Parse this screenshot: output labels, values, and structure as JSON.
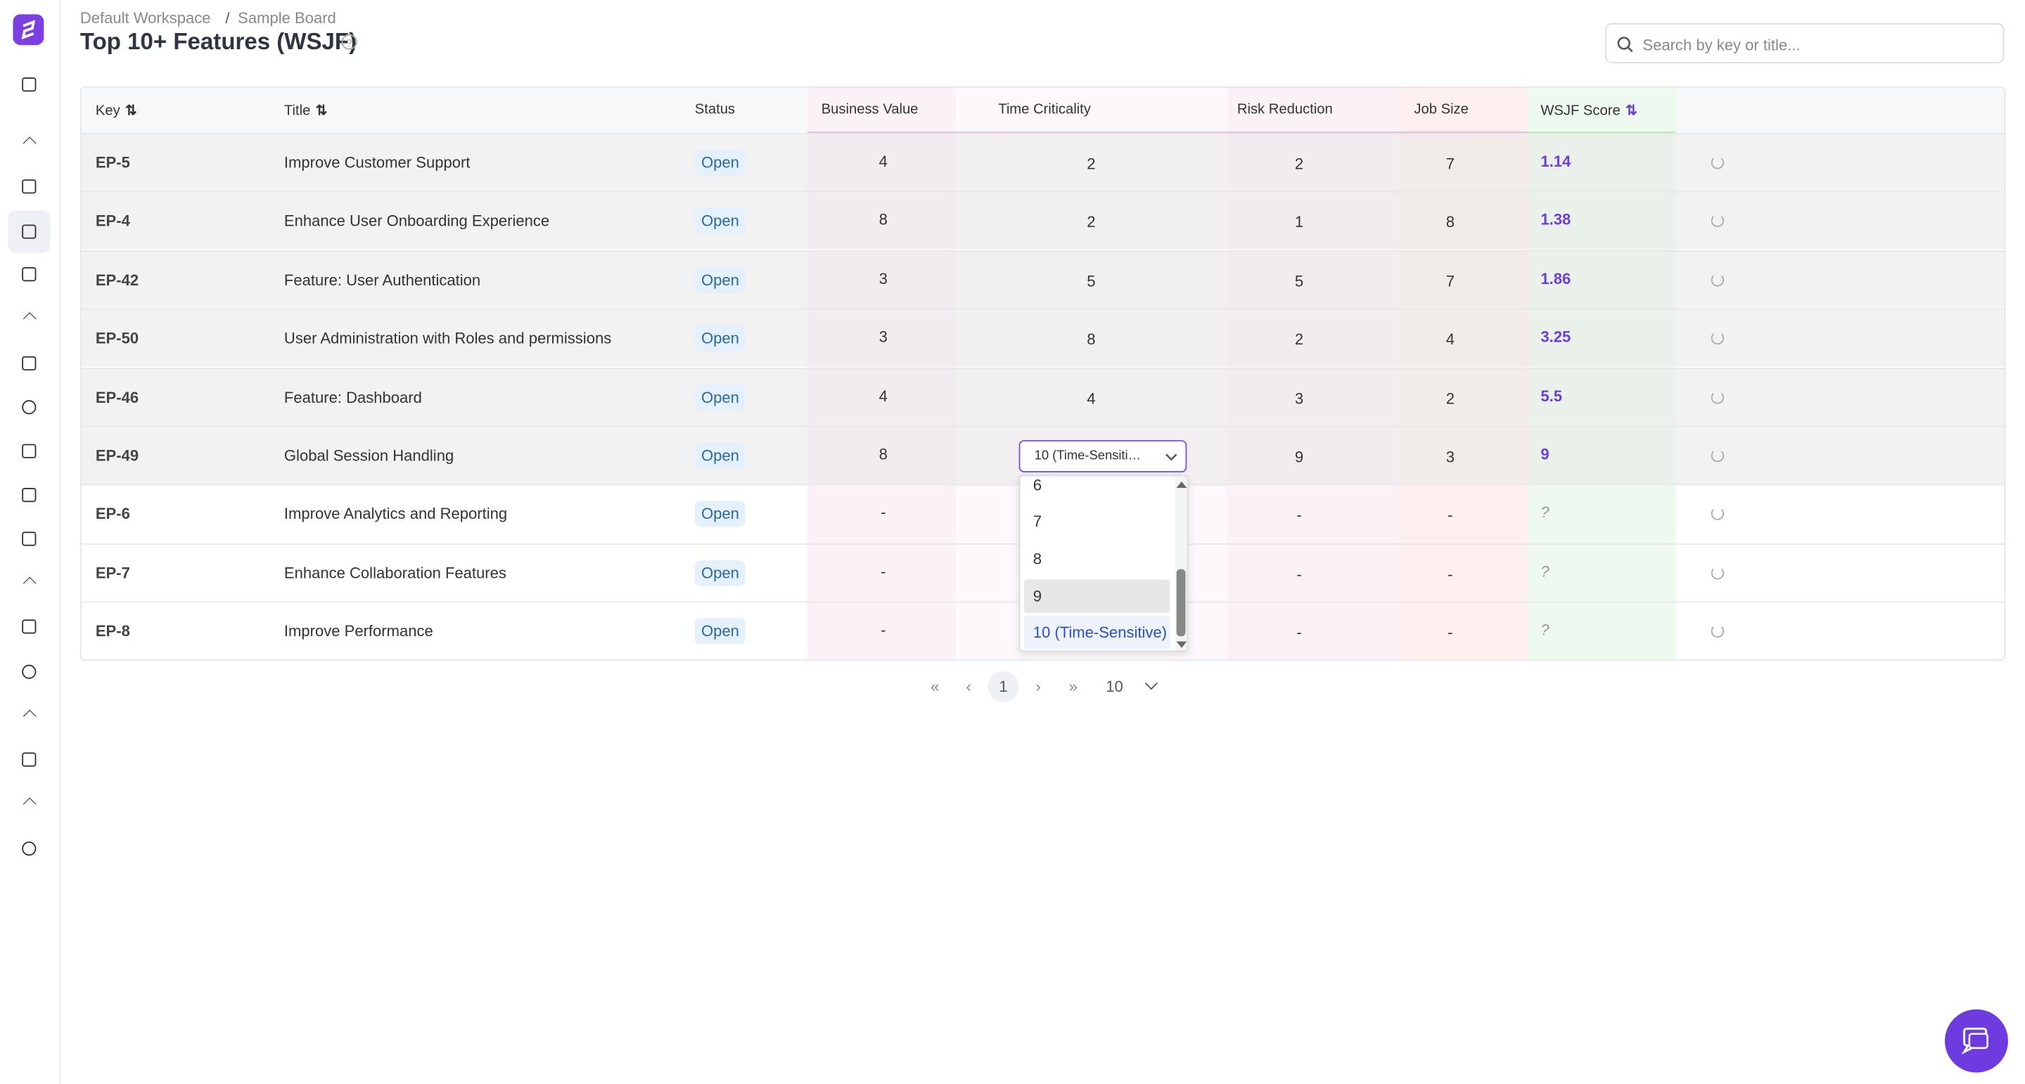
{
  "breadcrumb": {
    "items": [
      "Default Workspace",
      "Sample Board"
    ],
    "separator": "/"
  },
  "title": "Top 10+ Features (WSJF)",
  "search": {
    "placeholder": "Search by key or title..."
  },
  "table": {
    "columns": [
      "Key",
      "Title",
      "Status",
      "Business Value",
      "Time Criticality",
      "Risk Reduction",
      "Job Size",
      "WSJF Score"
    ],
    "rows": [
      [
        "EP-5",
        "Improve Customer Support",
        "Open",
        4,
        2,
        2,
        7,
        1.14
      ],
      [
        "EP-4",
        "Enhance User Onboarding Experience",
        "Open",
        8,
        2,
        1,
        8,
        1.38
      ],
      [
        "EP-42",
        "Feature: User Authentication",
        "Open",
        3,
        5,
        5,
        7,
        1.86
      ],
      [
        "EP-50",
        "User Administration with Roles and permissions",
        "Open",
        3,
        8,
        2,
        4,
        3.25
      ],
      [
        "EP-46",
        "Feature: Dashboard",
        "Open",
        4,
        4,
        3,
        2,
        5.5
      ],
      [
        "EP-49",
        "Global Session Handling",
        "Open",
        8,
        null,
        9,
        3,
        9
      ],
      [
        "EP-6",
        "Improve Analytics and Reporting",
        "Open",
        "-",
        null,
        "-",
        "-",
        "?"
      ],
      [
        "EP-7",
        "Enhance Collaboration Features",
        "Open",
        "-",
        null,
        "-",
        "-",
        "?"
      ],
      [
        "EP-8",
        "Improve Performance",
        "Open",
        "-",
        null,
        "-",
        "-",
        "?"
      ]
    ]
  },
  "dropdown": {
    "selected": "10 (Time-Sensitive)",
    "options": [
      "6",
      "7",
      "8",
      "9",
      "10 (Time-Sensitive)"
    ]
  },
  "pagination": {
    "current": "1",
    "page_size": "10"
  }
}
